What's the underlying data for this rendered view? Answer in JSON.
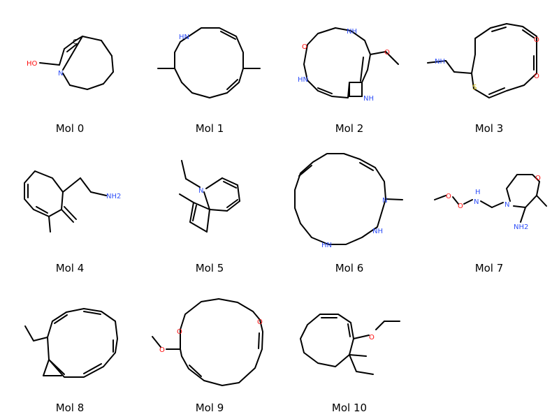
{
  "molecules": [
    {
      "label": "Mol 0",
      "atoms": [
        "HO",
        "N",
        "C"
      ]
    },
    {
      "label": "Mol 1",
      "atoms": [
        "HN"
      ]
    },
    {
      "label": "Mol 2",
      "atoms": [
        "O",
        "NH",
        "HN",
        "NH",
        "O"
      ]
    },
    {
      "label": "Mol 3",
      "atoms": [
        "NH",
        "S",
        "O",
        "O"
      ]
    },
    {
      "label": "Mol 4",
      "atoms": [
        "NH2"
      ]
    },
    {
      "label": "Mol 5",
      "atoms": [
        "N"
      ]
    },
    {
      "label": "Mol 6",
      "atoms": [
        "N",
        "NH",
        "HN"
      ]
    },
    {
      "label": "Mol 7",
      "atoms": [
        "O",
        "O",
        "H",
        "N",
        "N",
        "O",
        "NH2"
      ]
    },
    {
      "label": "Mol 8",
      "atoms": []
    },
    {
      "label": "Mol 9",
      "atoms": [
        "O",
        "O",
        "O"
      ]
    },
    {
      "label": "Mol 10",
      "atoms": [
        "O"
      ]
    }
  ]
}
